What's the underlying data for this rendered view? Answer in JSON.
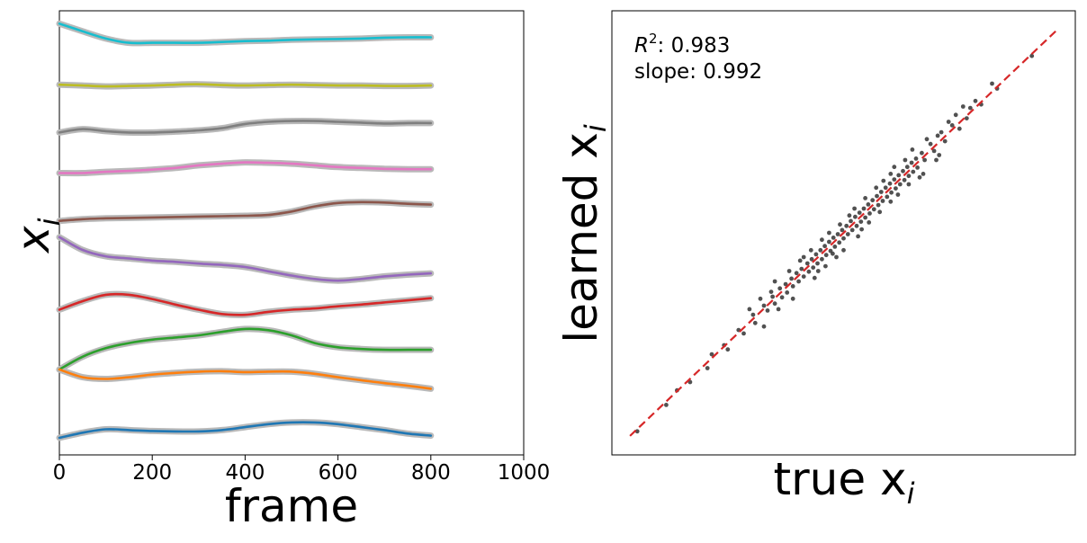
{
  "chart_data": [
    {
      "type": "line",
      "title": "",
      "xlabel": "frame",
      "ylabel": "x",
      "ylabel_subscript": "i",
      "xlim": [
        0,
        1000
      ],
      "xticks": [
        "0",
        "200",
        "400",
        "600",
        "800",
        "1000"
      ],
      "yticks_visible": false,
      "shadow_color": "#b9b9b9",
      "x": [
        0,
        50,
        100,
        150,
        200,
        250,
        300,
        350,
        400,
        450,
        500,
        550,
        600,
        650,
        700,
        750,
        800
      ],
      "series": [
        {
          "color": "#17becf",
          "offset": 9.2,
          "values": [
            0.5,
            0.32,
            0.15,
            0.05,
            0.05,
            0.05,
            0.05,
            0.07,
            0.09,
            0.1,
            0.12,
            0.13,
            0.14,
            0.15,
            0.17,
            0.18,
            0.18
          ]
        },
        {
          "color": "#bcbd22",
          "offset": 8.2,
          "values": [
            0.07,
            0.05,
            0.03,
            0.04,
            0.05,
            0.07,
            0.08,
            0.06,
            0.05,
            0.06,
            0.07,
            0.06,
            0.05,
            0.05,
            0.04,
            0.04,
            0.05
          ]
        },
        {
          "color": "#7f7f7f",
          "offset": 7.2,
          "values": [
            -0.05,
            0.03,
            -0.02,
            -0.05,
            -0.05,
            -0.03,
            0.0,
            0.05,
            0.15,
            0.2,
            0.22,
            0.22,
            0.2,
            0.18,
            0.16,
            0.17,
            0.17
          ]
        },
        {
          "color": "#e377c2",
          "offset": 6.2,
          "values": [
            0.0,
            0.0,
            0.03,
            0.05,
            0.08,
            0.12,
            0.18,
            0.22,
            0.25,
            0.24,
            0.22,
            0.18,
            0.14,
            0.12,
            0.1,
            0.09,
            0.09
          ]
        },
        {
          "color": "#8c564b",
          "offset": 5.2,
          "values": [
            -0.12,
            -0.08,
            -0.06,
            -0.05,
            -0.04,
            -0.03,
            -0.02,
            -0.01,
            0.0,
            0.02,
            0.1,
            0.22,
            0.3,
            0.32,
            0.31,
            0.28,
            0.26
          ]
        },
        {
          "color": "#9467bd",
          "offset": 4.2,
          "values": [
            0.5,
            0.2,
            0.05,
            0.0,
            -0.05,
            -0.08,
            -0.12,
            -0.15,
            -0.2,
            -0.3,
            -0.4,
            -0.48,
            -0.52,
            -0.48,
            -0.42,
            -0.38,
            -0.35
          ]
        },
        {
          "color": "#d62728",
          "offset": 3.0,
          "values": [
            0.0,
            0.2,
            0.35,
            0.35,
            0.25,
            0.12,
            0.0,
            -0.1,
            -0.12,
            -0.05,
            0.0,
            0.03,
            0.08,
            0.12,
            0.17,
            0.22,
            0.27
          ]
        },
        {
          "color": "#2ca02c",
          "offset": 1.6,
          "values": [
            0.0,
            0.3,
            0.5,
            0.62,
            0.7,
            0.75,
            0.8,
            0.88,
            0.95,
            0.92,
            0.8,
            0.62,
            0.52,
            0.48,
            0.46,
            0.46,
            0.46
          ]
        },
        {
          "color": "#ff7f0e",
          "offset": 1.0,
          "values": [
            0.6,
            0.42,
            0.38,
            0.42,
            0.48,
            0.52,
            0.55,
            0.56,
            0.54,
            0.55,
            0.55,
            0.5,
            0.42,
            0.35,
            0.28,
            0.22,
            0.15
          ]
        },
        {
          "color": "#1f77b4",
          "offset": 0.0,
          "values": [
            0.0,
            0.12,
            0.2,
            0.18,
            0.16,
            0.15,
            0.15,
            0.18,
            0.25,
            0.32,
            0.36,
            0.36,
            0.32,
            0.25,
            0.18,
            0.1,
            0.05
          ]
        }
      ]
    },
    {
      "type": "scatter",
      "title": "",
      "xlabel": "true x",
      "xlabel_subscript": "i",
      "ylabel": "learned x",
      "ylabel_subscript": "i",
      "ticks_visible": false,
      "xlim": [
        -3.2,
        3.2
      ],
      "ylim": [
        -3.2,
        3.2
      ],
      "point_color": "#333333",
      "fit_line": {
        "color": "#d62728",
        "style": "dashed",
        "slope": 0.992,
        "intercept": 0.0,
        "x_range": [
          -2.95,
          2.95
        ]
      },
      "annotation": {
        "r2_label": "R",
        "r2_sup": "2",
        "r2_value": ": 0.983",
        "slope_text": "slope: 0.992"
      },
      "points": [
        [
          -2.85,
          -2.86
        ],
        [
          -2.3,
          -2.27
        ],
        [
          -2.12,
          -2.15
        ],
        [
          -2.45,
          -2.48
        ],
        [
          -1.82,
          -1.75
        ],
        [
          -1.88,
          -1.95
        ],
        [
          -1.65,
          -1.62
        ],
        [
          -1.6,
          -1.68
        ],
        [
          -1.45,
          -1.4
        ],
        [
          -1.38,
          -1.45
        ],
        [
          -1.25,
          -1.18
        ],
        [
          -1.22,
          -1.3
        ],
        [
          -1.1,
          -1.05
        ],
        [
          -1.05,
          -1.12
        ],
        [
          -0.98,
          -0.92
        ],
        [
          -0.95,
          -1.02
        ],
        [
          -0.88,
          -0.8
        ],
        [
          -0.85,
          -0.93
        ],
        [
          -0.8,
          -0.74
        ],
        [
          -0.78,
          -0.86
        ],
        [
          -0.72,
          -0.66
        ],
        [
          -0.7,
          -0.77
        ],
        [
          -0.65,
          -0.58
        ],
        [
          -0.62,
          -0.7
        ],
        [
          -0.58,
          -0.52
        ],
        [
          -0.55,
          -0.63
        ],
        [
          -0.5,
          -0.44
        ],
        [
          -0.48,
          -0.56
        ],
        [
          -0.44,
          -0.38
        ],
        [
          -0.42,
          -0.5
        ],
        [
          -0.38,
          -0.31
        ],
        [
          -0.36,
          -0.44
        ],
        [
          -0.32,
          -0.25
        ],
        [
          -0.3,
          -0.38
        ],
        [
          -0.26,
          -0.19
        ],
        [
          -0.24,
          -0.32
        ],
        [
          -0.2,
          -0.13
        ],
        [
          -0.18,
          -0.26
        ],
        [
          -0.14,
          -0.07
        ],
        [
          -0.12,
          -0.2
        ],
        [
          -0.08,
          -0.02
        ],
        [
          -0.06,
          -0.14
        ],
        [
          -0.02,
          0.04
        ],
        [
          0.0,
          -0.08
        ],
        [
          0.04,
          0.1
        ],
        [
          0.06,
          -0.02
        ],
        [
          0.1,
          0.17
        ],
        [
          0.12,
          0.04
        ],
        [
          0.16,
          0.23
        ],
        [
          0.18,
          0.1
        ],
        [
          0.22,
          0.29
        ],
        [
          0.24,
          0.16
        ],
        [
          0.28,
          0.35
        ],
        [
          0.3,
          0.22
        ],
        [
          0.34,
          0.41
        ],
        [
          0.36,
          0.28
        ],
        [
          0.4,
          0.47
        ],
        [
          0.42,
          0.34
        ],
        [
          0.46,
          0.53
        ],
        [
          0.48,
          0.4
        ],
        [
          0.52,
          0.59
        ],
        [
          0.54,
          0.46
        ],
        [
          0.58,
          0.65
        ],
        [
          0.6,
          0.52
        ],
        [
          0.64,
          0.71
        ],
        [
          0.66,
          0.58
        ],
        [
          0.7,
          0.77
        ],
        [
          0.72,
          0.64
        ],
        [
          0.76,
          0.83
        ],
        [
          0.78,
          0.7
        ],
        [
          0.82,
          0.89
        ],
        [
          0.84,
          0.76
        ],
        [
          0.88,
          0.95
        ],
        [
          0.9,
          0.82
        ],
        [
          0.94,
          1.01
        ],
        [
          0.96,
          0.88
        ],
        [
          1.0,
          1.07
        ],
        [
          1.02,
          0.94
        ],
        [
          1.08,
          1.15
        ],
        [
          1.12,
          1.05
        ],
        [
          1.2,
          1.28
        ],
        [
          1.25,
          1.18
        ],
        [
          1.35,
          1.45
        ],
        [
          1.4,
          1.32
        ],
        [
          1.55,
          1.7
        ],
        [
          1.7,
          1.65
        ],
        [
          1.82,
          1.9
        ],
        [
          1.65,
          1.82
        ],
        [
          2.05,
          2.15
        ],
        [
          2.12,
          2.08
        ],
        [
          2.6,
          2.55
        ],
        [
          -1.0,
          -0.85
        ],
        [
          0.5,
          0.3
        ],
        [
          0.3,
          0.5
        ],
        [
          -0.3,
          -0.1
        ],
        [
          -0.1,
          -0.35
        ],
        [
          0.75,
          0.55
        ],
        [
          0.65,
          0.85
        ],
        [
          -0.6,
          -0.4
        ],
        [
          -0.4,
          -0.65
        ],
        [
          1.1,
          0.85
        ],
        [
          0.95,
          1.2
        ],
        [
          -0.9,
          -1.1
        ],
        [
          -1.15,
          -0.95
        ],
        [
          0.15,
          0.35
        ],
        [
          0.35,
          0.15
        ],
        [
          -0.2,
          0.0
        ],
        [
          0.0,
          -0.25
        ],
        [
          0.85,
          1.05
        ],
        [
          1.05,
          0.8
        ],
        [
          -0.7,
          -0.95
        ],
        [
          -0.95,
          -0.7
        ],
        [
          1.28,
          1.05
        ],
        [
          0.55,
          0.75
        ],
        [
          -0.15,
          -0.3
        ],
        [
          0.25,
          0.05
        ],
        [
          -0.55,
          -0.35
        ],
        [
          -0.35,
          -0.55
        ],
        [
          0.45,
          0.65
        ],
        [
          0.65,
          0.45
        ],
        [
          1.15,
          1.35
        ],
        [
          1.32,
          1.12
        ],
        [
          -1.3,
          -1.1
        ],
        [
          -1.1,
          -1.35
        ],
        [
          0.08,
          0.25
        ],
        [
          0.2,
          -0.05
        ],
        [
          -0.45,
          -0.25
        ],
        [
          -0.25,
          -0.48
        ],
        [
          0.9,
          0.7
        ],
        [
          0.7,
          0.95
        ],
        [
          -0.05,
          0.12
        ],
        [
          -0.75,
          -0.55
        ],
        [
          1.5,
          1.55
        ],
        [
          1.45,
          1.6
        ],
        [
          1.6,
          1.5
        ],
        [
          1.75,
          1.8
        ],
        [
          1.9,
          1.85
        ],
        [
          1.3,
          1.4
        ]
      ]
    }
  ]
}
